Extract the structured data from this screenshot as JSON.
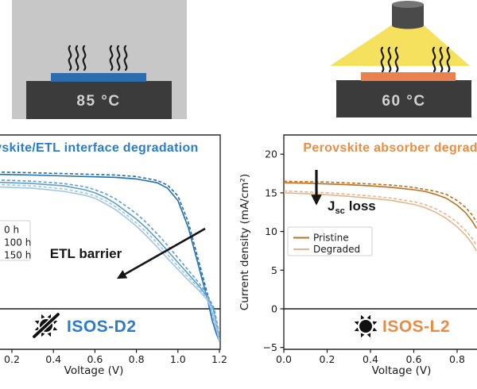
{
  "illustrations": {
    "hotplate": {
      "temperature": "85 °C",
      "panel_bg_color": "#c7c7c7",
      "platform_color": "#3b3b3b",
      "sample_color": "#2c6dad",
      "heat_icon": "heat-waves-icon"
    },
    "lamp": {
      "temperature": "60 °C",
      "lamp_color": "#4a4a4a",
      "light_color": "#f5e15e",
      "platform_color": "#3b3b3b",
      "sample_color": "#e8814e",
      "heat_icon": "heat-waves-icon"
    }
  },
  "chart_data": [
    {
      "type": "line",
      "title": "Perovskite/ETL interface degradation",
      "title_color": "#2b7cc9",
      "xlabel": "Voltage (V)",
      "ylabel": "",
      "xlim": [
        0,
        1.2
      ],
      "ylim": [
        -5.3,
        22.6
      ],
      "x_ticks": [
        0.2,
        0.4,
        0.6,
        0.8,
        1.0,
        1.2
      ],
      "x_tick_labels": [
        "0.2",
        "0.4",
        "0.6",
        "0.8",
        "1.0",
        "1.2"
      ],
      "zero_line": true,
      "grid": false,
      "legend_position": "center-left",
      "legend": {
        "entries": [
          {
            "label": "0 h",
            "color": "#1f6eb4"
          },
          {
            "label": "100 h",
            "color": "#5d9ed2"
          },
          {
            "label": "150 h",
            "color": "#9fc7e4"
          }
        ]
      },
      "annotations": [
        {
          "text": "ETL barrier",
          "arrow": "down-left"
        }
      ],
      "badge": {
        "label": "ISOS-D2",
        "color": "#2b7cc9",
        "icon": "crossed-sun-icon"
      },
      "series": [
        {
          "name": "0 h forward",
          "style": "solid",
          "color": "#1f6eb4",
          "x": [
            0.1,
            0.3,
            0.5,
            0.7,
            0.8,
            0.9,
            0.95,
            1.0,
            1.05,
            1.1,
            1.14,
            1.165,
            1.185,
            1.2
          ],
          "y": [
            17.4,
            17.3,
            17.15,
            17.0,
            16.8,
            16.3,
            15.6,
            14.0,
            10.5,
            5.5,
            1.5,
            -1.5,
            -3.2,
            -4.2
          ]
        },
        {
          "name": "0 h reverse",
          "style": "dashed",
          "color": "#1f6eb4",
          "x": [
            0.1,
            0.3,
            0.5,
            0.7,
            0.8,
            0.9,
            0.95,
            1.0,
            1.05,
            1.1,
            1.14,
            1.17,
            1.19,
            1.2
          ],
          "y": [
            17.7,
            17.6,
            17.45,
            17.3,
            17.1,
            16.6,
            16.0,
            14.6,
            11.2,
            6.2,
            2.2,
            -1.2,
            -3.0,
            -4.0
          ]
        },
        {
          "name": "100 h forward",
          "style": "solid",
          "color": "#5d9ed2",
          "x": [
            0.1,
            0.3,
            0.45,
            0.55,
            0.6,
            0.65,
            0.7,
            0.75,
            0.8,
            0.85,
            0.9,
            0.95,
            1.0,
            1.05,
            1.1,
            1.14,
            1.17,
            1.185,
            1.2
          ],
          "y": [
            16.4,
            16.2,
            15.9,
            15.4,
            15.0,
            14.4,
            13.6,
            12.6,
            11.6,
            10.4,
            9.0,
            7.5,
            6.0,
            4.5,
            3.0,
            1.6,
            0.0,
            -1.8,
            -4.0
          ]
        },
        {
          "name": "100 h reverse",
          "style": "dashed",
          "color": "#5d9ed2",
          "x": [
            0.1,
            0.3,
            0.45,
            0.55,
            0.6,
            0.65,
            0.7,
            0.75,
            0.8,
            0.85,
            0.9,
            0.95,
            1.0,
            1.05,
            1.1,
            1.14,
            1.175,
            1.19,
            1.2
          ],
          "y": [
            16.7,
            16.5,
            16.2,
            15.8,
            15.4,
            14.9,
            14.2,
            13.3,
            12.3,
            11.1,
            9.7,
            8.2,
            6.6,
            5.0,
            3.4,
            1.9,
            0.0,
            -2.0,
            -3.8
          ]
        },
        {
          "name": "150 h forward",
          "style": "solid",
          "color": "#9fc7e4",
          "x": [
            0.1,
            0.3,
            0.45,
            0.55,
            0.6,
            0.65,
            0.7,
            0.75,
            0.8,
            0.85,
            0.9,
            0.95,
            1.0,
            1.05,
            1.1,
            1.14,
            1.16,
            1.18,
            1.2
          ],
          "y": [
            15.8,
            15.6,
            15.2,
            14.7,
            14.3,
            13.6,
            12.8,
            11.8,
            10.7,
            9.4,
            8.0,
            6.5,
            5.1,
            3.7,
            2.4,
            1.2,
            0.0,
            -2.0,
            -4.3
          ]
        },
        {
          "name": "150 h reverse",
          "style": "dashed",
          "color": "#9fc7e4",
          "x": [
            0.1,
            0.3,
            0.45,
            0.55,
            0.6,
            0.65,
            0.7,
            0.75,
            0.8,
            0.85,
            0.9,
            0.95,
            1.0,
            1.05,
            1.1,
            1.14,
            1.165,
            1.185,
            1.2
          ],
          "y": [
            16.1,
            15.9,
            15.5,
            15.0,
            14.6,
            14.0,
            13.2,
            12.2,
            11.1,
            9.9,
            8.5,
            7.0,
            5.5,
            4.1,
            2.7,
            1.4,
            0.0,
            -1.9,
            -4.1
          ]
        }
      ]
    },
    {
      "type": "line",
      "title": "Perovskite absorber degradation",
      "title_color": "#ea8c42",
      "xlabel": "Voltage (V)",
      "ylabel": "Current density (mA/cm²)",
      "xlim": [
        0,
        1.2
      ],
      "ylim": [
        -5.3,
        22.6
      ],
      "x_ticks": [
        0.0,
        0.2,
        0.4,
        0.6,
        0.8
      ],
      "x_tick_labels": [
        "0.0",
        "0.2",
        "0.4",
        "0.6",
        "0.8"
      ],
      "y_ticks": [
        -5,
        0,
        5,
        10,
        15,
        20
      ],
      "y_tick_labels": [
        "−5",
        "0",
        "5",
        "10",
        "15",
        "20"
      ],
      "zero_line": true,
      "grid": false,
      "legend_position": "center-left",
      "legend": {
        "entries": [
          {
            "label": "Pristine",
            "color": "#bd7120"
          },
          {
            "label": "Degraded",
            "color": "#e5b68e"
          }
        ]
      },
      "annotations": [
        {
          "text_main": "J",
          "text_sub": "sc",
          "text_rest": "loss",
          "arrow": "down"
        }
      ],
      "badge": {
        "label": "ISOS-L2",
        "color": "#ea8c42",
        "icon": "sun-icon"
      },
      "series": [
        {
          "name": "Pristine forward",
          "style": "solid",
          "color": "#bd7120",
          "x": [
            0.0,
            0.1,
            0.2,
            0.3,
            0.4,
            0.5,
            0.6,
            0.65,
            0.7,
            0.75,
            0.8,
            0.84,
            0.87,
            0.89
          ],
          "y": [
            16.3,
            16.25,
            16.15,
            16.05,
            15.9,
            15.7,
            15.4,
            15.2,
            14.8,
            14.3,
            13.4,
            12.4,
            11.3,
            10.4
          ]
        },
        {
          "name": "Pristine reverse",
          "style": "dashed",
          "color": "#bd7120",
          "x": [
            0.0,
            0.2,
            0.4,
            0.5,
            0.6,
            0.7,
            0.75,
            0.8,
            0.84,
            0.87,
            0.89
          ],
          "y": [
            16.5,
            16.4,
            16.15,
            16.0,
            15.7,
            15.2,
            14.8,
            14.0,
            13.1,
            12.1,
            11.2
          ]
        },
        {
          "name": "Degraded forward",
          "style": "solid",
          "color": "#e5b68e",
          "x": [
            0.0,
            0.1,
            0.2,
            0.3,
            0.4,
            0.5,
            0.6,
            0.65,
            0.7,
            0.75,
            0.8,
            0.84,
            0.87,
            0.89
          ],
          "y": [
            15.0,
            14.9,
            14.75,
            14.55,
            14.3,
            14.0,
            13.5,
            13.1,
            12.5,
            11.7,
            10.6,
            9.5,
            8.4,
            7.5
          ]
        },
        {
          "name": "Degraded reverse",
          "style": "dashed",
          "color": "#e5b68e",
          "x": [
            0.0,
            0.2,
            0.4,
            0.5,
            0.6,
            0.65,
            0.7,
            0.75,
            0.8,
            0.84,
            0.87,
            0.89
          ],
          "y": [
            15.25,
            15.0,
            14.6,
            14.3,
            13.85,
            13.5,
            12.95,
            12.2,
            11.2,
            10.1,
            9.1,
            8.2
          ]
        }
      ]
    }
  ]
}
